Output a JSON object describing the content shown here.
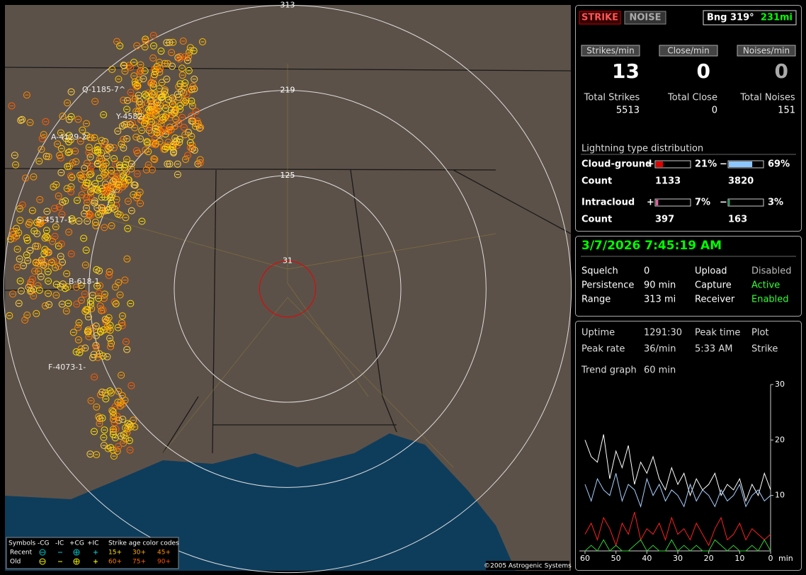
{
  "map": {
    "ranges": [
      313,
      219,
      125,
      31
    ],
    "station_labels": [
      "Q-1185-7^",
      "Y-4582-",
      "A-4129-2-",
      "S-4517-1-",
      "B-618-1",
      "F-4073-1-"
    ],
    "copyright": "©2005 Astrogenic Systems",
    "legend": {
      "header": [
        "Symbols",
        "-CG",
        "-IC",
        "+CG",
        "+IC",
        "Strike age color codes"
      ],
      "rows": [
        {
          "label": "Recent",
          "ages": [
            "15+",
            "30+",
            "45+"
          ]
        },
        {
          "label": "Old",
          "ages": [
            "60+",
            "75+",
            "90+"
          ]
        }
      ]
    }
  },
  "status": {
    "buttons": [
      "STRIKE",
      "NOISE"
    ],
    "bearing": "Bng 319°",
    "distance": "231mi"
  },
  "rates": [
    {
      "label": "Strikes/min",
      "value": 13,
      "total_label": "Total Strikes",
      "total": 5513
    },
    {
      "label": "Close/min",
      "value": 0,
      "total_label": "Total Close",
      "total": 0
    },
    {
      "label": "Noises/min",
      "value": 0,
      "total_label": "Total Noises",
      "total": 151
    }
  ],
  "distribution": {
    "title": "Lightning type distribution",
    "signs": [
      "+",
      "−"
    ],
    "count_label": "Count",
    "rows": [
      {
        "label": "Cloud-ground",
        "percents": [
          21,
          69
        ],
        "percent_labels": [
          "21%",
          "69%"
        ],
        "counts": [
          1133,
          3820
        ],
        "colors": [
          "#e00000",
          "#8cc8ff"
        ]
      },
      {
        "label": "Intracloud",
        "percents": [
          7,
          3
        ],
        "percent_labels": [
          "7%",
          "3%"
        ],
        "counts": [
          397,
          163
        ],
        "colors": [
          "#e060a0",
          "#00c060"
        ]
      }
    ]
  },
  "clock": "3/7/2026 7:45:19 AM",
  "settings": [
    [
      "Squelch",
      "0",
      "Upload",
      "Disabled"
    ],
    [
      "Persistence",
      "90 min",
      "Capture",
      "Active"
    ],
    [
      "Range",
      "313 mi",
      "Receiver",
      "Enabled"
    ]
  ],
  "stats": [
    [
      "Uptime",
      "1291:30",
      "Peak time",
      "Plot"
    ],
    [
      "Peak rate",
      "36/min",
      "5:33 AM",
      "Strike"
    ],
    [
      "Trend graph",
      "60 min"
    ]
  ],
  "trend": {
    "type": "line",
    "x_label": "min",
    "x": [
      60,
      58,
      56,
      54,
      52,
      50,
      48,
      46,
      44,
      42,
      40,
      38,
      36,
      34,
      32,
      30,
      28,
      26,
      24,
      22,
      20,
      18,
      16,
      14,
      12,
      10,
      8,
      6,
      4,
      2,
      0
    ],
    "xlim": [
      60,
      0
    ],
    "xticks": [
      60,
      50,
      40,
      30,
      20,
      10,
      0
    ],
    "ylim": [
      0,
      30
    ],
    "yticks": [
      10,
      20,
      30
    ],
    "series": [
      {
        "color": "#ffffff",
        "values": [
          20,
          17,
          16,
          21,
          13,
          18,
          15,
          19,
          12,
          16,
          14,
          17,
          13,
          11,
          15,
          12,
          14,
          10,
          13,
          11,
          12,
          14,
          10,
          12,
          11,
          13,
          9,
          12,
          10,
          14,
          11
        ]
      },
      {
        "color": "#a8d0ff",
        "values": [
          12,
          9,
          13,
          11,
          10,
          14,
          9,
          12,
          11,
          8,
          13,
          10,
          12,
          9,
          11,
          10,
          8,
          12,
          9,
          11,
          10,
          8,
          11,
          9,
          10,
          12,
          8,
          10,
          11,
          9,
          10
        ]
      },
      {
        "color": "#ff2020",
        "values": [
          3,
          5,
          2,
          6,
          4,
          1,
          5,
          3,
          7,
          2,
          4,
          3,
          5,
          2,
          6,
          3,
          4,
          2,
          5,
          3,
          1,
          4,
          6,
          2,
          3,
          5,
          2,
          4,
          3,
          2,
          3
        ]
      },
      {
        "color": "#30d030",
        "values": [
          0,
          1,
          0,
          2,
          0,
          1,
          0,
          0,
          1,
          2,
          0,
          1,
          0,
          0,
          2,
          0,
          1,
          0,
          1,
          0,
          0,
          2,
          1,
          0,
          1,
          0,
          0,
          1,
          0,
          2,
          0
        ]
      }
    ]
  }
}
